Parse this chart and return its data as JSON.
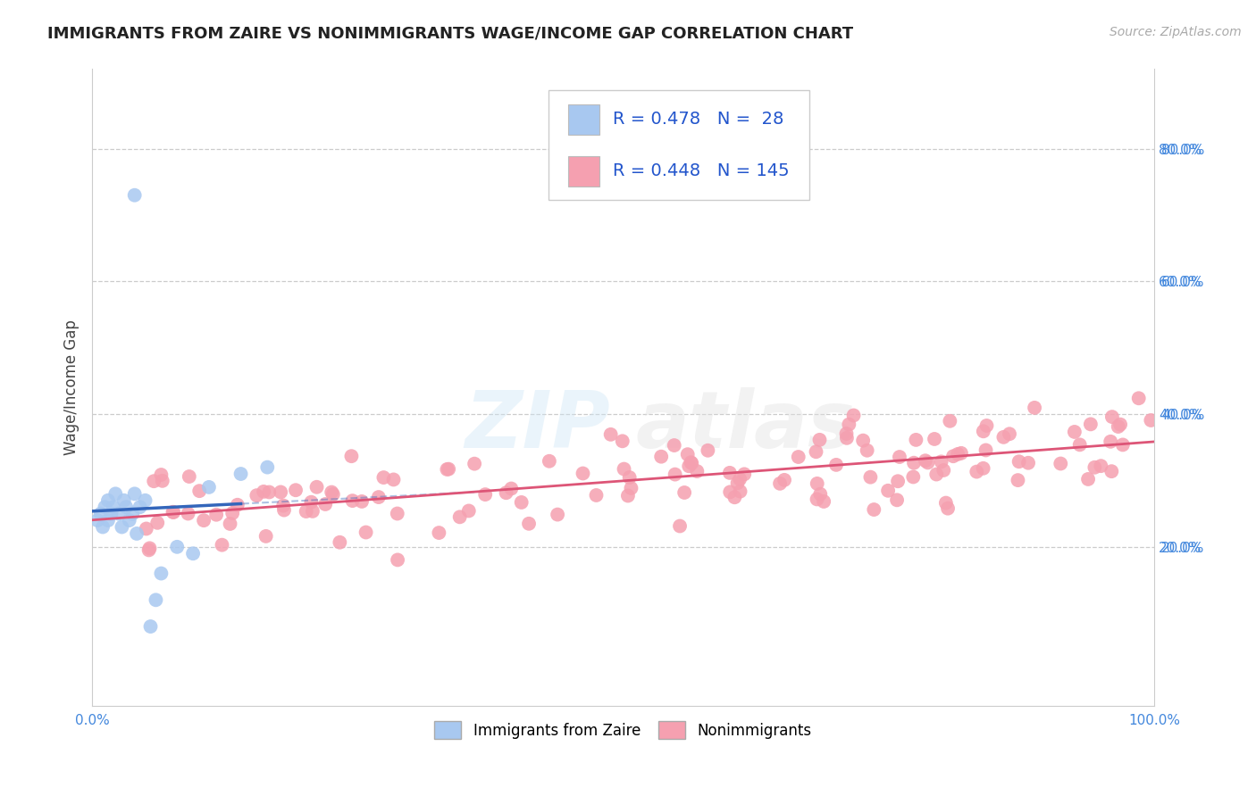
{
  "title": "IMMIGRANTS FROM ZAIRE VS NONIMMIGRANTS WAGE/INCOME GAP CORRELATION CHART",
  "source": "Source: ZipAtlas.com",
  "ylabel": "Wage/Income Gap",
  "xlim": [
    0.0,
    1.0
  ],
  "ylim": [
    -0.04,
    0.92
  ],
  "xtick_positions": [
    0.0,
    1.0
  ],
  "xtick_labels": [
    "0.0%",
    "100.0%"
  ],
  "ytick_positions": [
    0.2,
    0.4,
    0.6,
    0.8
  ],
  "ytick_labels": [
    "20.0%",
    "40.0%",
    "60.0%",
    "80.0%"
  ],
  "grid_color": "#cccccc",
  "background_color": "#ffffff",
  "blue_color": "#a8c8f0",
  "blue_line_color": "#3366bb",
  "pink_color": "#f5a0b0",
  "pink_line_color": "#dd5577",
  "blue_R": 0.478,
  "blue_N": 28,
  "pink_R": 0.448,
  "pink_N": 145,
  "legend_label_blue": "Immigrants from Zaire",
  "legend_label_pink": "Nonimmigrants",
  "ytick_color": "#4488dd",
  "xtick_color": "#4488dd"
}
